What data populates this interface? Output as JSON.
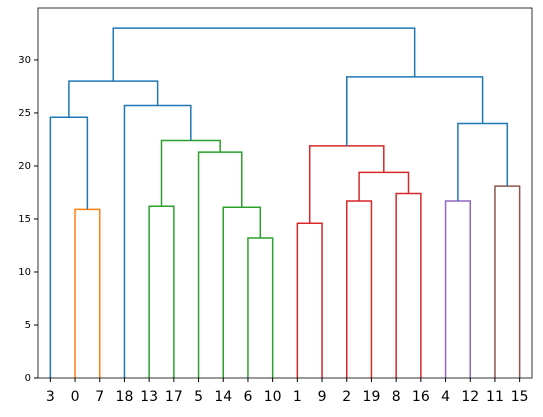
{
  "chart_data": {
    "type": "dendrogram",
    "categories": [
      "3",
      "0",
      "7",
      "18",
      "13",
      "17",
      "5",
      "14",
      "6",
      "10",
      "1",
      "9",
      "2",
      "19",
      "8",
      "16",
      "4",
      "12",
      "11",
      "15"
    ],
    "merges": [
      {
        "children": [
          1,
          2
        ],
        "height": 15.9,
        "color": "#ff7f0e"
      },
      {
        "children": [
          0,
          20
        ],
        "height": 24.6,
        "color": "#1f77b4"
      },
      {
        "children": [
          8,
          9
        ],
        "height": 13.2,
        "color": "#2ca02c"
      },
      {
        "children": [
          7,
          22
        ],
        "height": 16.1,
        "color": "#2ca02c"
      },
      {
        "children": [
          6,
          23
        ],
        "height": 21.3,
        "color": "#2ca02c"
      },
      {
        "children": [
          4,
          5
        ],
        "height": 16.2,
        "color": "#2ca02c"
      },
      {
        "children": [
          25,
          24
        ],
        "height": 22.4,
        "color": "#2ca02c"
      },
      {
        "children": [
          3,
          26
        ],
        "height": 25.7,
        "color": "#1f77b4"
      },
      {
        "children": [
          21,
          27
        ],
        "height": 28.0,
        "color": "#1f77b4"
      },
      {
        "children": [
          10,
          11
        ],
        "height": 14.6,
        "color": "#d62728"
      },
      {
        "children": [
          12,
          13
        ],
        "height": 16.7,
        "color": "#d62728"
      },
      {
        "children": [
          14,
          15
        ],
        "height": 17.4,
        "color": "#d62728"
      },
      {
        "children": [
          30,
          31
        ],
        "height": 19.4,
        "color": "#d62728"
      },
      {
        "children": [
          29,
          32
        ],
        "height": 21.9,
        "color": "#d62728"
      },
      {
        "children": [
          16,
          17
        ],
        "height": 16.7,
        "color": "#9467bd"
      },
      {
        "children": [
          18,
          19
        ],
        "height": 18.1,
        "color": "#8c564b"
      },
      {
        "children": [
          34,
          35
        ],
        "height": 24.0,
        "color": "#1f77b4"
      },
      {
        "children": [
          33,
          36
        ],
        "height": 28.4,
        "color": "#1f77b4"
      },
      {
        "children": [
          28,
          37
        ],
        "height": 33.0,
        "color": "#1f77b4"
      }
    ],
    "ylim": [
      0,
      34.9
    ],
    "yticks": [
      0,
      5,
      10,
      15,
      20,
      25,
      30
    ]
  }
}
